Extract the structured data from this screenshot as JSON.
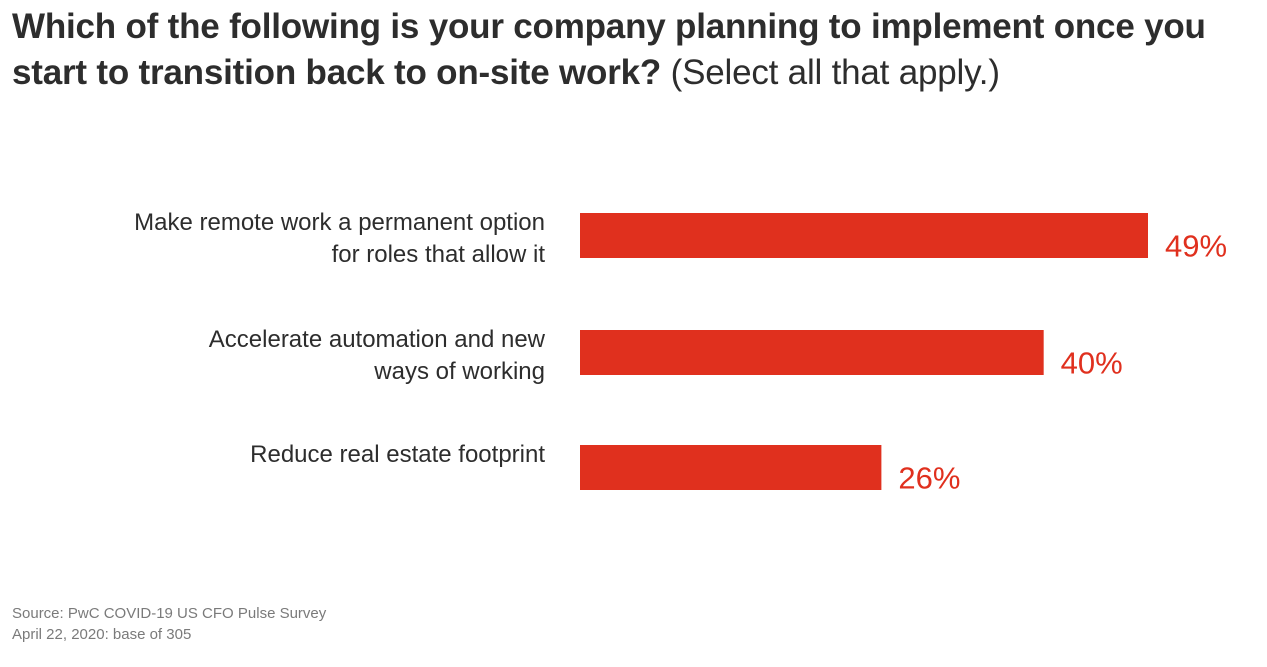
{
  "title": {
    "question": "Which of the following is your company planning to implement once you start to transition back to on-site work?",
    "note": "(Select all that apply.)"
  },
  "colors": {
    "bar": "#e0301e",
    "label_value": "#e0301e",
    "text": "#2d2d2d",
    "footer": "#7a7a7a"
  },
  "chart_data": {
    "type": "bar",
    "orientation": "horizontal",
    "categories": [
      [
        "Make remote work a permanent option",
        "for roles that allow it"
      ],
      [
        "Accelerate automation and new",
        "ways of working"
      ],
      [
        "Reduce real estate footprint"
      ]
    ],
    "values": [
      49,
      40,
      26
    ],
    "value_labels": [
      "49%",
      "40%",
      "26%"
    ],
    "unit": "%",
    "xlim": [
      0,
      49
    ],
    "grid": false,
    "legend": "none"
  },
  "footer": {
    "source": "Source: PwC COVID-19 US CFO Pulse Survey",
    "base": "April 22, 2020: base of 305"
  }
}
